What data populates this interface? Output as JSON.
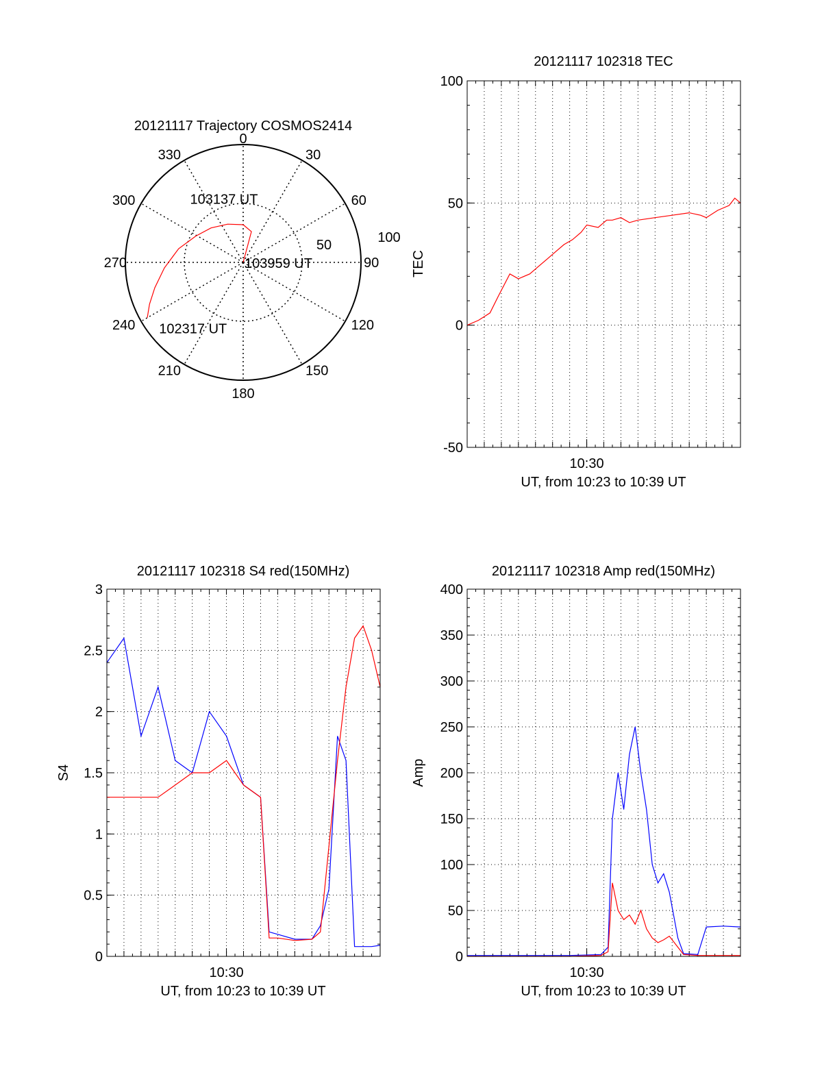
{
  "chart_data": [
    {
      "type": "polar",
      "title": "20121117 Trajectory COSMOS2414",
      "theta_labels": [
        "0",
        "30",
        "60",
        "90",
        "120",
        "150",
        "180",
        "210",
        "240",
        "270",
        "300",
        "330"
      ],
      "radial_labels": [
        "50",
        "100"
      ],
      "rlim": [
        0,
        100
      ],
      "grid": true,
      "series": [
        {
          "color": "#ff0000",
          "points": [
            {
              "az": 240,
              "el": 6
            },
            {
              "az": 246,
              "el": 13
            },
            {
              "az": 254,
              "el": 22
            },
            {
              "az": 266,
              "el": 33
            },
            {
              "az": 282,
              "el": 44
            },
            {
              "az": 299,
              "el": 54
            },
            {
              "az": 317,
              "el": 60
            },
            {
              "az": 338,
              "el": 65
            },
            {
              "az": 0,
              "el": 68
            },
            {
              "az": 15,
              "el": 73
            },
            {
              "az": 30,
              "el": 100
            }
          ]
        }
      ],
      "annotations": [
        {
          "text": "103959 UT",
          "az": 30,
          "el": 100
        },
        {
          "text": "103137 UT",
          "az": 335,
          "el": 69
        },
        {
          "text": "102317 UT",
          "az": 232,
          "el": 8
        }
      ]
    },
    {
      "type": "line",
      "title": "20121117 102318 TEC",
      "xlabel": "UT, from 10:23 to 10:39 UT",
      "ylabel": "TEC",
      "xlim": [
        "10:23:00",
        "10:39:00"
      ],
      "ylim": [
        -50,
        100
      ],
      "yticks": [
        -50,
        0,
        50,
        100
      ],
      "xticks": [
        {
          "value": "10:30:00",
          "label": "10:30"
        }
      ],
      "grid": true,
      "series": [
        {
          "color": "#ff0000",
          "x": [
            "10:23:00",
            "10:23:40",
            "10:24:20",
            "10:24:50",
            "10:25:30",
            "10:26:00",
            "10:26:40",
            "10:27:10",
            "10:27:40",
            "10:28:10",
            "10:28:40",
            "10:29:10",
            "10:29:40",
            "10:30:00",
            "10:30:40",
            "10:31:10",
            "10:31:30",
            "10:32:00",
            "10:32:30",
            "10:33:00",
            "10:34:00",
            "10:35:00",
            "10:36:00",
            "10:36:40",
            "10:37:00",
            "10:37:40",
            "10:38:20",
            "10:38:40",
            "10:39:00"
          ],
          "y": [
            0,
            2,
            5,
            12,
            21,
            19,
            21,
            24,
            27,
            30,
            33,
            35,
            38,
            41,
            40,
            43,
            43,
            44,
            42,
            43,
            44,
            45,
            46,
            45,
            44,
            47,
            49,
            52,
            50
          ]
        }
      ]
    },
    {
      "type": "line",
      "title": "20121117 102318 S4 red(150MHz)",
      "xlabel": "UT, from 10:23 to 10:39 UT",
      "ylabel": "S4",
      "xlim": [
        "10:23:00",
        "10:39:00"
      ],
      "ylim": [
        0,
        3
      ],
      "yticks": [
        "0",
        "0.5",
        "1",
        "1.5",
        "2",
        "2.5",
        "3"
      ],
      "xticks": [
        {
          "value": "10:30:00",
          "label": "10:30"
        }
      ],
      "grid": true,
      "series": [
        {
          "color": "#0000ff",
          "x": [
            "10:23:00",
            "10:24:00",
            "10:25:00",
            "10:26:00",
            "10:27:00",
            "10:28:00",
            "10:29:00",
            "10:30:00",
            "10:31:00",
            "10:32:00",
            "10:32:30",
            "10:33:00",
            "10:34:00",
            "10:35:00",
            "10:35:30",
            "10:36:00",
            "10:36:30",
            "10:37:00",
            "10:37:30",
            "10:38:00",
            "10:38:30",
            "10:39:00"
          ],
          "y": [
            2.4,
            2.6,
            1.8,
            2.2,
            1.6,
            1.5,
            2.0,
            1.8,
            1.4,
            1.3,
            0.2,
            0.18,
            0.14,
            0.14,
            0.25,
            0.55,
            1.8,
            1.6,
            0.08,
            0.08,
            0.08,
            0.09
          ]
        },
        {
          "color": "#ff0000",
          "x": [
            "10:23:00",
            "10:24:00",
            "10:25:00",
            "10:26:00",
            "10:27:00",
            "10:28:00",
            "10:29:00",
            "10:30:00",
            "10:31:00",
            "10:32:00",
            "10:32:30",
            "10:33:00",
            "10:34:00",
            "10:35:00",
            "10:35:30",
            "10:36:00",
            "10:36:30",
            "10:37:00",
            "10:37:30",
            "10:38:00",
            "10:38:30",
            "10:39:00"
          ],
          "y": [
            1.3,
            1.3,
            1.3,
            1.3,
            1.4,
            1.5,
            1.5,
            1.6,
            1.4,
            1.3,
            0.15,
            0.15,
            0.13,
            0.14,
            0.2,
            0.9,
            1.6,
            2.2,
            2.6,
            2.7,
            2.5,
            2.2
          ]
        }
      ]
    },
    {
      "type": "line",
      "title": "20121117 102318 Amp red(150MHz)",
      "xlabel": "UT, from 10:23 to 10:39 UT",
      "ylabel": "Amp",
      "xlim": [
        "10:23:00",
        "10:39:00"
      ],
      "ylim": [
        0,
        400
      ],
      "yticks": [
        0,
        50,
        100,
        150,
        200,
        250,
        300,
        350,
        400
      ],
      "xticks": [
        {
          "value": "10:30:00",
          "label": "10:30"
        }
      ],
      "grid": true,
      "series": [
        {
          "color": "#0000ff",
          "x": [
            "10:23:00",
            "10:26:00",
            "10:29:00",
            "10:30:50",
            "10:31:15",
            "10:31:30",
            "10:31:50",
            "10:32:10",
            "10:32:30",
            "10:32:50",
            "10:33:10",
            "10:33:30",
            "10:33:50",
            "10:34:10",
            "10:34:30",
            "10:34:50",
            "10:35:20",
            "10:35:40",
            "10:36:30",
            "10:37:00",
            "10:38:00",
            "10:39:00"
          ],
          "y": [
            1,
            1,
            1,
            2,
            10,
            150,
            200,
            160,
            220,
            250,
            200,
            160,
            100,
            80,
            90,
            70,
            20,
            3,
            2,
            32,
            33,
            32
          ]
        },
        {
          "color": "#ff0000",
          "x": [
            "10:23:00",
            "10:26:00",
            "10:29:00",
            "10:30:50",
            "10:31:15",
            "10:31:30",
            "10:31:50",
            "10:32:10",
            "10:32:30",
            "10:32:50",
            "10:33:10",
            "10:33:30",
            "10:33:50",
            "10:34:10",
            "10:34:30",
            "10:34:50",
            "10:35:20",
            "10:35:40",
            "10:36:30",
            "10:37:00",
            "10:38:00",
            "10:39:00"
          ],
          "y": [
            0,
            0,
            0,
            1,
            5,
            80,
            50,
            40,
            45,
            35,
            50,
            30,
            20,
            15,
            18,
            22,
            10,
            2,
            1,
            1,
            1,
            1
          ]
        }
      ]
    }
  ]
}
